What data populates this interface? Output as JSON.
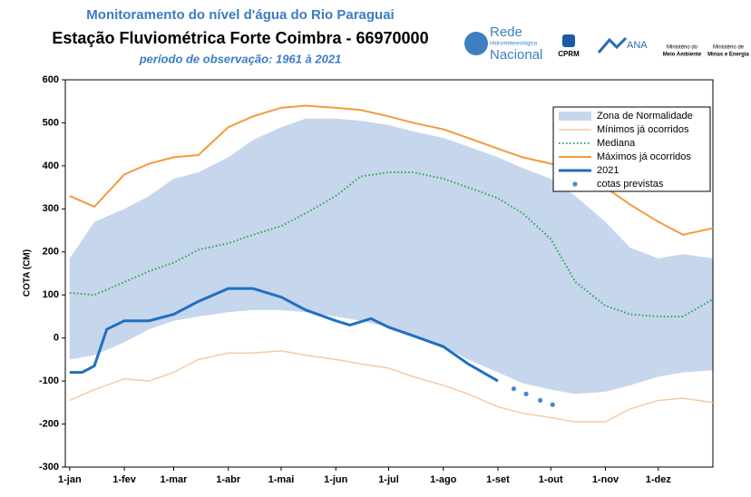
{
  "chart_data": {
    "type": "line",
    "title": "Monitoramento do nível d'água do Rio Paraguai",
    "subtitle": "Estação Fluviométrica Forte Coimbra - 66970000",
    "period": "período de observação: 1961 à 2021",
    "logos": [
      "Rede",
      "Hidrometeorológica",
      "Nacional",
      "CPRM",
      "ANA",
      "Ministério do",
      "Meio Ambiente",
      "Ministério de",
      "Minas e Energia"
    ],
    "y_label": "COTA (CM)",
    "xlim": [
      -1.5,
      366
    ],
    "ylim": [
      -300,
      600
    ],
    "yticks": [
      -300,
      -200,
      -100,
      0,
      100,
      200,
      300,
      400,
      500,
      600
    ],
    "xticks": [
      {
        "value": 1,
        "label": "1-jan"
      },
      {
        "value": 32,
        "label": "1-fev"
      },
      {
        "value": 60,
        "label": "1-mar"
      },
      {
        "value": 91,
        "label": "1-abr"
      },
      {
        "value": 121,
        "label": "1-mai"
      },
      {
        "value": 152,
        "label": "1-jun"
      },
      {
        "value": 182,
        "label": "1-jul"
      },
      {
        "value": 213,
        "label": "1-ago"
      },
      {
        "value": 244,
        "label": "1-set"
      },
      {
        "value": 274,
        "label": "1-out"
      },
      {
        "value": 305,
        "label": "1-nov"
      },
      {
        "value": 335,
        "label": "1-dez"
      }
    ],
    "x": [
      1,
      15,
      32,
      46,
      60,
      74,
      91,
      105,
      121,
      135,
      152,
      166,
      182,
      196,
      213,
      227,
      244,
      258,
      274,
      288,
      305,
      319,
      335,
      349,
      366
    ],
    "band": {
      "name": "Zona de Normalidade",
      "color": "#c6d6ed",
      "lower": [
        -50,
        -40,
        -10,
        20,
        40,
        50,
        60,
        65,
        65,
        60,
        50,
        40,
        25,
        5,
        -20,
        -50,
        -80,
        -105,
        -120,
        -130,
        -125,
        -110,
        -90,
        -80,
        -75
      ],
      "upper": [
        185,
        270,
        300,
        330,
        370,
        385,
        420,
        460,
        490,
        510,
        510,
        505,
        495,
        480,
        465,
        445,
        420,
        395,
        370,
        330,
        270,
        210,
        185,
        195,
        185
      ]
    },
    "series": [
      {
        "name": "Mínimos já ocorridos",
        "color": "#f8c9a2",
        "style": "solid",
        "width": 1.5,
        "values": [
          -145,
          -120,
          -95,
          -100,
          -80,
          -50,
          -35,
          -35,
          -30,
          -40,
          -50,
          -60,
          -70,
          -90,
          -110,
          -130,
          -160,
          -175,
          -185,
          -195,
          -195,
          -165,
          -145,
          -140,
          -150
        ]
      },
      {
        "name": "Mediana",
        "color": "#2aa84a",
        "style": "dotted",
        "width": 2,
        "values": [
          105,
          100,
          130,
          155,
          175,
          205,
          220,
          240,
          260,
          290,
          330,
          375,
          385,
          385,
          370,
          350,
          325,
          290,
          230,
          130,
          75,
          55,
          50,
          50,
          90
        ]
      },
      {
        "name": "Máximos já ocorridos",
        "color": "#f29a3a",
        "style": "solid",
        "width": 2,
        "values": [
          330,
          305,
          380,
          405,
          420,
          425,
          490,
          515,
          535,
          540,
          535,
          530,
          515,
          500,
          485,
          465,
          440,
          420,
          405,
          385,
          350,
          310,
          270,
          240,
          255
        ]
      },
      {
        "name": "2021",
        "color": "#1f6fbf",
        "style": "solid",
        "width": 3,
        "x": [
          1,
          8,
          15,
          22,
          32,
          46,
          60,
          74,
          91,
          105,
          121,
          135,
          152,
          160,
          172,
          182,
          196,
          213,
          227,
          244
        ],
        "values": [
          -80,
          -80,
          -65,
          20,
          40,
          40,
          55,
          85,
          115,
          115,
          95,
          65,
          40,
          30,
          45,
          25,
          5,
          -20,
          -60,
          -100
        ]
      },
      {
        "name": "cotas previstas",
        "color": "#4a86c8",
        "style": "points",
        "x": [
          253,
          260,
          268,
          275
        ],
        "values": [
          -118,
          -130,
          -145,
          -155
        ]
      }
    ]
  }
}
